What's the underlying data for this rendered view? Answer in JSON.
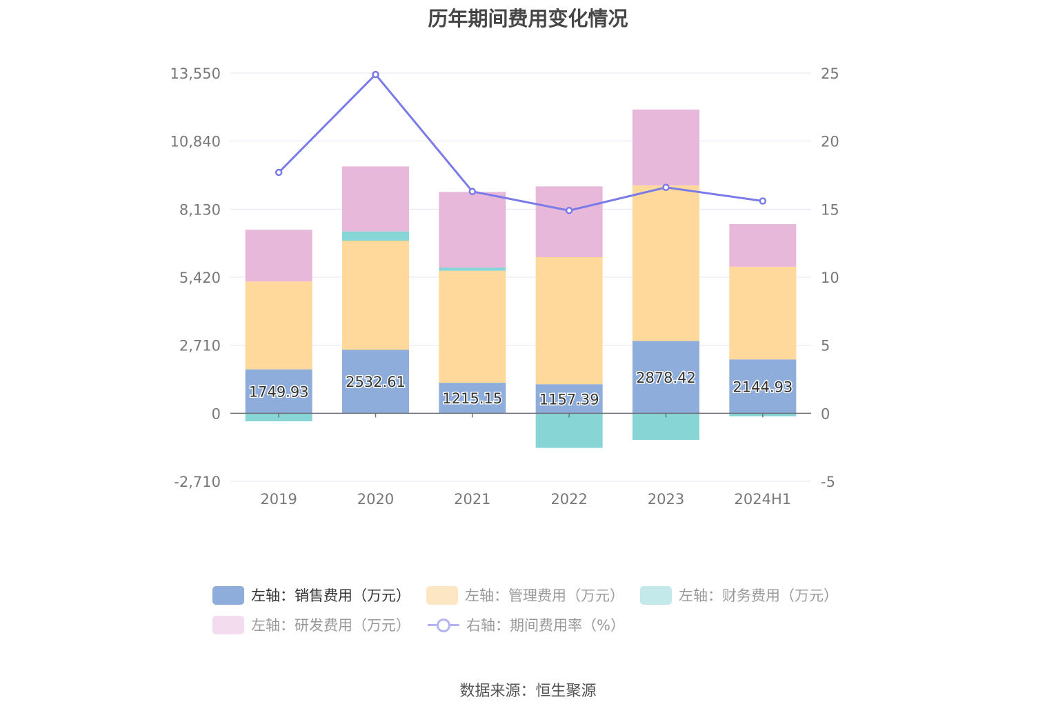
{
  "title": "历年期间费用变化情况",
  "source": "数据来源：恒生聚源",
  "chart_data": {
    "type": "bar",
    "stacked": true,
    "categories": [
      "2019",
      "2020",
      "2021",
      "2022",
      "2023",
      "2024H1"
    ],
    "left_axis": {
      "ticks": [
        "13,550",
        "10,840",
        "8,130",
        "5,420",
        "2,710",
        "0",
        "-2,710"
      ],
      "ylim": [
        -2710,
        13550
      ]
    },
    "right_axis": {
      "ticks": [
        "25",
        "20",
        "15",
        "10",
        "5",
        "0",
        "-5"
      ],
      "ylim": [
        -5,
        25
      ]
    },
    "series": [
      {
        "name": "左轴：销售费用（万元）",
        "color": "#8eaddb",
        "axis": "left",
        "values": [
          1749.93,
          2532.61,
          1215.15,
          1157.39,
          2878.42,
          2144.93
        ],
        "labels": [
          "1749.93",
          "2532.61",
          "1215.15",
          "1157.39",
          "2878.42",
          "2144.93"
        ]
      },
      {
        "name": "左轴：管理费用（万元）",
        "color": "#fed99b",
        "axis": "left",
        "values": [
          3500,
          4340,
          4460,
          5060,
          6200,
          3690
        ]
      },
      {
        "name": "左轴：财务费用（万元）",
        "color": "#88d5d6",
        "axis": "left",
        "values": [
          -320,
          370,
          130,
          -1380,
          -1060,
          -120
        ]
      },
      {
        "name": "左轴：研发费用（万元）",
        "color": "#e7b8d9",
        "axis": "left",
        "values": [
          2060,
          2590,
          3010,
          2820,
          3020,
          1700
        ]
      },
      {
        "name": "右轴：期间费用率（%）",
        "color": "#7a7be8",
        "axis": "right",
        "type": "line",
        "values": [
          17.7,
          24.9,
          16.3,
          14.9,
          16.6,
          15.6
        ]
      }
    ],
    "legend": "bottom",
    "grid": true
  }
}
